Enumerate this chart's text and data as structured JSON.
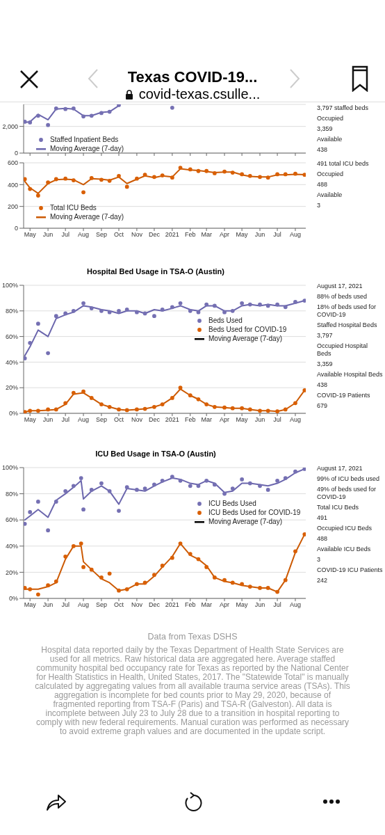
{
  "chart_data": [
    {
      "type": "other",
      "title": "Texas COVID-19...",
      "annotations": [
        "covid-texas.csulle..."
      ]
    },
    {
      "type": "scatter",
      "tick_labels": "y",
      "legend": "bottom left",
      "grid": "y",
      "ylim": [
        0,
        3650
      ],
      "yticks": [
        {
          "value": 0,
          "label": "0"
        },
        {
          "value": 2000,
          "label": "2,000"
        }
      ],
      "xlim": [
        "2020-04-20",
        "2021-08-19"
      ],
      "xticks": [
        {
          "value": "2020-05-01",
          "label": null
        },
        {
          "value": "2020-06-01",
          "label": null
        },
        {
          "value": "2020-07-01",
          "label": null
        },
        {
          "value": "2020-08-01",
          "label": null
        },
        {
          "value": "2020-09-01",
          "label": null
        },
        {
          "value": "2020-10-01",
          "label": null
        },
        {
          "value": "2020-11-01",
          "label": null
        },
        {
          "value": "2020-12-01",
          "label": null
        },
        {
          "value": "2021-01-01",
          "label": null
        },
        {
          "value": "2021-02-01",
          "label": null
        },
        {
          "value": "2021-03-01",
          "label": null
        },
        {
          "value": "2021-04-01",
          "label": null
        },
        {
          "value": "2021-05-01",
          "label": null
        },
        {
          "value": "2021-06-01",
          "label": null
        },
        {
          "value": "2021-07-01",
          "label": null
        },
        {
          "value": "2021-08-01",
          "label": null
        }
      ],
      "x": [
        "2020-04-22",
        "2020-05-01",
        "2020-05-15",
        "2020-06-01",
        "2020-06-15",
        "2020-07-01",
        "2020-07-15",
        "2020-08-01",
        "2020-08-15",
        "2020-09-01",
        "2020-09-15",
        "2020-10-01",
        "2020-10-15",
        "2020-11-01",
        "2020-11-15",
        "2020-12-01",
        "2020-12-15",
        "2021-01-01"
      ],
      "series": [
        {
          "name": "Staffed Inpatient Beds",
          "type": "scatter",
          "color": "#7570b3",
          "values": [
            2350,
            2300,
            2800,
            2100,
            3350,
            3300,
            3350,
            2750,
            2800,
            3000,
            3100,
            3600,
            null,
            null,
            null,
            null,
            null,
            3400
          ]
        },
        {
          "name": "Moving Average (7-day)",
          "type": "line",
          "color": "#6b66ad",
          "values": [
            2300,
            2350,
            2900,
            2500,
            3300,
            3350,
            3300,
            2800,
            2800,
            3050,
            3100,
            3550,
            null,
            null,
            null,
            null,
            null,
            null
          ]
        }
      ],
      "annotations": [
        "3,797 staffed beds",
        "Occupied",
        "3,359",
        "Available",
        "438"
      ]
    },
    {
      "type": "scatter",
      "legend": "bottom left",
      "grid": "y",
      "ylim": [
        0,
        600
      ],
      "yticks": [
        0,
        200,
        400,
        600
      ],
      "xlim": [
        "2020-04-20",
        "2021-08-19"
      ],
      "xticks": [
        {
          "value": "2020-05-01",
          "label": "May"
        },
        {
          "value": "2020-06-01",
          "label": "Jun"
        },
        {
          "value": "2020-07-01",
          "label": "Jul"
        },
        {
          "value": "2020-08-01",
          "label": "Aug"
        },
        {
          "value": "2020-09-01",
          "label": "Sep"
        },
        {
          "value": "2020-10-01",
          "label": "Oct"
        },
        {
          "value": "2020-11-01",
          "label": "Nov"
        },
        {
          "value": "2020-12-01",
          "label": "Dec"
        },
        {
          "value": "2021-01-01",
          "label": "2021"
        },
        {
          "value": "2021-02-01",
          "label": "Feb"
        },
        {
          "value": "2021-03-01",
          "label": "Mar"
        },
        {
          "value": "2021-04-01",
          "label": "Apr"
        },
        {
          "value": "2021-05-01",
          "label": "May"
        },
        {
          "value": "2021-06-01",
          "label": "Jun"
        },
        {
          "value": "2021-07-01",
          "label": "Jul"
        },
        {
          "value": "2021-08-01",
          "label": "Aug"
        }
      ],
      "x": [
        "2020-04-22",
        "2020-05-01",
        "2020-05-15",
        "2020-06-01",
        "2020-06-15",
        "2020-07-01",
        "2020-07-15",
        "2020-08-01",
        "2020-08-15",
        "2020-09-01",
        "2020-09-15",
        "2020-10-01",
        "2020-10-15",
        "2020-11-01",
        "2020-11-15",
        "2020-12-01",
        "2020-12-15",
        "2021-01-01",
        "2021-01-15",
        "2021-02-01",
        "2021-02-15",
        "2021-03-01",
        "2021-03-15",
        "2021-04-01",
        "2021-04-15",
        "2021-05-01",
        "2021-05-15",
        "2021-06-01",
        "2021-06-15",
        "2021-07-01",
        "2021-07-15",
        "2021-08-01",
        "2021-08-17"
      ],
      "series": [
        {
          "name": "Total ICU Beds",
          "type": "scatter",
          "color": "#d95f02",
          "values": [
            450,
            360,
            300,
            420,
            450,
            455,
            440,
            330,
            460,
            445,
            435,
            480,
            380,
            455,
            490,
            470,
            485,
            465,
            555,
            540,
            525,
            525,
            505,
            520,
            510,
            495,
            480,
            470,
            465,
            495,
            495,
            500,
            490
          ]
        },
        {
          "name": "Moving Average (7-day)",
          "type": "line",
          "color": "#cc5a04",
          "values": [
            430,
            370,
            320,
            410,
            445,
            450,
            445,
            400,
            455,
            450,
            440,
            470,
            410,
            450,
            480,
            465,
            480,
            470,
            545,
            535,
            530,
            520,
            510,
            515,
            515,
            490,
            475,
            470,
            470,
            490,
            490,
            495,
            491
          ]
        }
      ],
      "annotations": [
        "491 total ICU beds",
        "Occupied",
        "488",
        "Available",
        "3"
      ]
    },
    {
      "type": "scatter",
      "title": "Hospital Bed Usage in TSA-O (Austin)",
      "legend": "right",
      "grid": "y",
      "ylim": [
        0,
        100
      ],
      "yticks": [
        {
          "value": 0,
          "label": "0%"
        },
        {
          "value": 20,
          "label": "20%"
        },
        {
          "value": 40,
          "label": "40%"
        },
        {
          "value": 60,
          "label": "60%"
        },
        {
          "value": 80,
          "label": "80%"
        },
        {
          "value": 100,
          "label": "100%"
        }
      ],
      "xlim": [
        "2020-04-20",
        "2021-08-19"
      ],
      "xticks": [
        {
          "value": "2020-05-01",
          "label": "May"
        },
        {
          "value": "2020-06-01",
          "label": "Jun"
        },
        {
          "value": "2020-07-01",
          "label": "Jul"
        },
        {
          "value": "2020-08-01",
          "label": "Aug"
        },
        {
          "value": "2020-09-01",
          "label": "Sep"
        },
        {
          "value": "2020-10-01",
          "label": "Oct"
        },
        {
          "value": "2020-11-01",
          "label": "Nov"
        },
        {
          "value": "2020-12-01",
          "label": "Dec"
        },
        {
          "value": "2021-01-01",
          "label": "2021"
        },
        {
          "value": "2021-02-01",
          "label": "Feb"
        },
        {
          "value": "2021-03-01",
          "label": "Mar"
        },
        {
          "value": "2021-04-01",
          "label": "Apr"
        },
        {
          "value": "2021-05-01",
          "label": "May"
        },
        {
          "value": "2021-06-01",
          "label": "Jun"
        },
        {
          "value": "2021-07-01",
          "label": "Jul"
        },
        {
          "value": "2021-08-01",
          "label": "Aug"
        }
      ],
      "x": [
        "2020-04-22",
        "2020-05-01",
        "2020-05-15",
        "2020-06-01",
        "2020-06-15",
        "2020-07-01",
        "2020-07-15",
        "2020-08-01",
        "2020-08-15",
        "2020-09-01",
        "2020-09-15",
        "2020-10-01",
        "2020-10-15",
        "2020-11-01",
        "2020-11-15",
        "2020-12-01",
        "2020-12-15",
        "2021-01-01",
        "2021-01-15",
        "2021-02-01",
        "2021-02-15",
        "2021-03-01",
        "2021-03-15",
        "2021-04-01",
        "2021-04-15",
        "2021-05-01",
        "2021-05-15",
        "2021-06-01",
        "2021-06-15",
        "2021-07-01",
        "2021-07-15",
        "2021-08-01",
        "2021-08-17"
      ],
      "series": [
        {
          "name": "Beds Used",
          "type": "scatter",
          "color": "#7570b3",
          "values": [
            43,
            55,
            70,
            47,
            76,
            78,
            80,
            86,
            82,
            80,
            79,
            80,
            81,
            79,
            78,
            76,
            81,
            83,
            86,
            80,
            79,
            85,
            84,
            79,
            80,
            86,
            85,
            85,
            84,
            85,
            83,
            87,
            88
          ]
        },
        {
          "name": "Beds Used for COVID-19",
          "type": "scatter",
          "color": "#d95f02",
          "values": [
            1,
            2,
            2,
            3,
            3,
            8,
            16,
            17,
            12,
            7,
            5,
            3,
            2.5,
            3,
            3.5,
            5,
            7,
            12,
            20,
            14,
            11,
            7,
            5,
            4.5,
            4,
            4,
            3,
            2,
            2,
            1.5,
            3,
            8,
            18
          ]
        },
        {
          "type": "line",
          "color": "#6b66ad",
          "values": [
            45,
            52,
            65,
            60,
            74,
            77,
            79,
            84,
            83,
            81,
            80,
            78,
            80,
            80,
            78,
            81,
            80,
            82,
            84,
            81,
            80,
            84,
            84,
            80,
            80,
            84,
            85,
            84,
            85,
            84,
            84,
            86,
            88
          ]
        },
        {
          "type": "line",
          "color": "#cc5a04",
          "values": [
            1,
            2,
            2,
            2.5,
            3,
            7,
            15,
            16,
            12,
            7,
            5,
            3,
            2.5,
            3,
            3.5,
            5,
            7,
            12,
            19,
            14,
            11,
            7,
            5,
            4.5,
            4,
            4,
            3,
            2,
            2,
            1.5,
            3,
            8,
            18
          ]
        }
      ],
      "annotations": [
        "Moving Average (7-day)",
        "August 17, 2021",
        "88% of beds used",
        "18% of beds used for COVID-19",
        "Staffed Hospital Beds",
        "3,797",
        "Occupied Hospital Beds",
        "3,359",
        "Available Hospital Beds",
        "438",
        "COVID-19 Patients",
        "679"
      ]
    },
    {
      "type": "scatter",
      "title": "ICU Bed Usage in TSA-O (Austin)",
      "legend": "right",
      "grid": "y",
      "ylim": [
        0,
        100
      ],
      "yticks": [
        {
          "value": 0,
          "label": "0%"
        },
        {
          "value": 20,
          "label": "20%"
        },
        {
          "value": 40,
          "label": "40%"
        },
        {
          "value": 60,
          "label": "60%"
        },
        {
          "value": 80,
          "label": "80%"
        },
        {
          "value": 100,
          "label": "100%"
        }
      ],
      "xlim": [
        "2020-04-20",
        "2021-08-19"
      ],
      "xticks": [
        {
          "value": "2020-05-01",
          "label": "May"
        },
        {
          "value": "2020-06-01",
          "label": "Jun"
        },
        {
          "value": "2020-07-01",
          "label": "Jul"
        },
        {
          "value": "2020-08-01",
          "label": "Aug"
        },
        {
          "value": "2020-09-01",
          "label": "Sep"
        },
        {
          "value": "2020-10-01",
          "label": "Oct"
        },
        {
          "value": "2020-11-01",
          "label": "Nov"
        },
        {
          "value": "2020-12-01",
          "label": "Dec"
        },
        {
          "value": "2021-01-01",
          "label": "2021"
        },
        {
          "value": "2021-02-01",
          "label": "Feb"
        },
        {
          "value": "2021-03-01",
          "label": "Mar"
        },
        {
          "value": "2021-04-01",
          "label": "Apr"
        },
        {
          "value": "2021-05-01",
          "label": "May"
        },
        {
          "value": "2021-06-01",
          "label": "Jun"
        },
        {
          "value": "2021-07-01",
          "label": "Jul"
        },
        {
          "value": "2021-08-01",
          "label": "Aug"
        }
      ],
      "x": [
        "2020-04-22",
        "2020-05-01",
        "2020-05-15",
        "2020-06-01",
        "2020-06-15",
        "2020-07-01",
        "2020-07-15",
        "2020-07-28",
        "2020-08-01",
        "2020-08-15",
        "2020-09-01",
        "2020-09-15",
        "2020-10-01",
        "2020-10-15",
        "2020-11-01",
        "2020-11-15",
        "2020-12-01",
        "2020-12-15",
        "2021-01-01",
        "2021-01-15",
        "2021-02-01",
        "2021-02-15",
        "2021-03-01",
        "2021-03-15",
        "2021-04-01",
        "2021-04-15",
        "2021-05-01",
        "2021-05-15",
        "2021-06-01",
        "2021-06-15",
        "2021-07-01",
        "2021-07-15",
        "2021-08-01",
        "2021-08-17"
      ],
      "series": [
        {
          "name": "ICU Beds Used",
          "type": "scatter",
          "color": "#7570b3",
          "values": [
            57,
            66,
            74,
            52,
            74,
            82,
            86,
            92,
            68,
            83,
            88,
            82,
            67,
            85,
            83,
            84,
            87,
            90,
            93,
            90,
            86,
            86,
            90,
            87,
            80,
            84,
            91,
            88,
            86,
            83,
            90,
            92,
            97,
            99
          ]
        },
        {
          "name": "ICU Beds Used for COVID-19",
          "type": "scatter",
          "color": "#d95f02",
          "values": [
            8,
            7,
            3,
            10,
            13,
            32,
            40,
            42,
            24,
            22,
            16,
            19,
            6,
            7,
            11,
            12,
            18,
            25,
            31,
            42,
            34,
            30,
            24,
            16,
            14,
            12,
            11,
            9,
            8,
            8,
            5,
            14,
            36,
            49
          ]
        },
        {
          "type": "line",
          "color": "#6b66ad",
          "values": [
            60,
            63,
            68,
            62,
            75,
            80,
            85,
            90,
            76,
            82,
            86,
            82,
            72,
            84,
            83,
            82,
            86,
            89,
            92,
            91,
            88,
            87,
            90,
            88,
            81,
            82,
            88,
            88,
            87,
            86,
            88,
            91,
            96,
            99
          ]
        },
        {
          "type": "line",
          "color": "#cc5a04",
          "values": [
            7,
            7,
            7,
            9,
            12,
            30,
            40,
            40,
            28,
            22,
            15,
            12,
            6,
            7,
            11,
            11,
            17,
            24,
            32,
            42,
            33,
            30,
            25,
            16,
            13,
            12,
            10,
            9,
            8,
            8,
            5,
            14,
            35,
            49
          ]
        }
      ],
      "annotations": [
        "Moving Average (7-day)",
        "August 17, 2021",
        "99% of ICU beds used",
        "49% of beds used for COVID-19",
        "Total ICU Beds",
        "491",
        "Occupied ICU Beds",
        "488",
        "Available ICU Beds",
        "3",
        "COVID-19 ICU Patients",
        "242"
      ]
    },
    {
      "type": "other",
      "title": "Data from Texas DSHS",
      "annotations": [
        "Hospital data reported daily by the Texas Department of Health State Services are used for all metrics. Raw historical data are aggregated here. Average staffed community hospital bed occupancy rate for Texas as reported by the National Center for Health Statistics in Health, United States, 2017. The \"Statewide Total\" is manually calculated by aggregating values from all available trauma service areas (TSAs). This aggregation is incomplete for bed counts prior to May 29, 2020, because of fragmented reporting from TSA-F (Paris) and TSA-R (Galveston). All data is incomplete between July 23 to July 28 due to a transition in hospital reporting to comply with new federal requirements. Manual curation was performed as necessary to avoid extreme graph values and are documented in the update script."
      ]
    }
  ]
}
